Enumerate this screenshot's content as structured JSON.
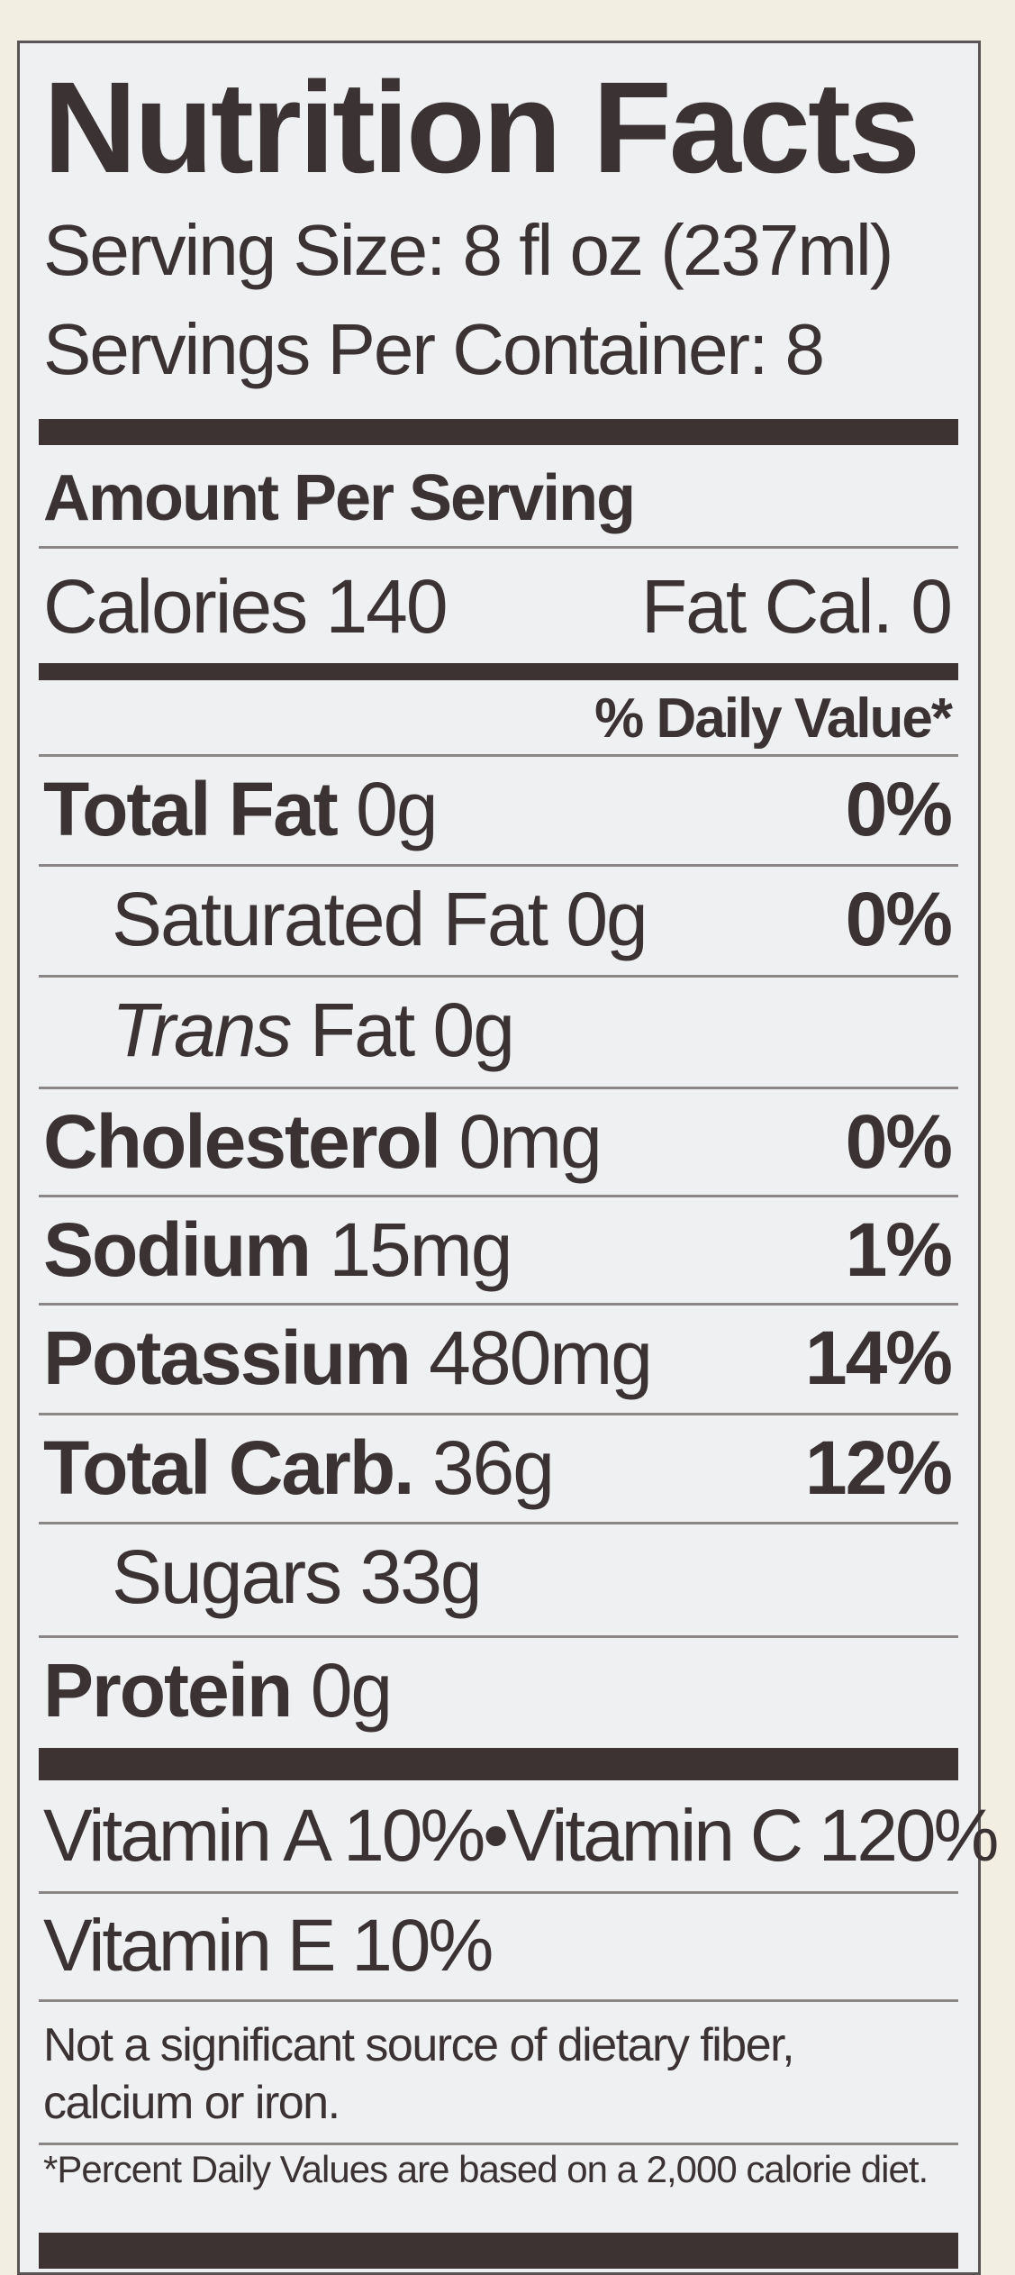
{
  "title": "Nutrition Facts",
  "serving_size": "Serving Size: 8 fl oz (237ml)",
  "servings_per_container": "Servings Per Container: 8",
  "amount_per_serving": "Amount Per Serving",
  "calories": {
    "label": "Calories",
    "value": "140"
  },
  "fat_calories": "Fat Cal. 0",
  "daily_value_header": "% Daily Value*",
  "nutrients": [
    {
      "name": "Total Fat",
      "amount": "0g",
      "dv": "0%"
    },
    {
      "name": "Saturated Fat",
      "amount": "0g",
      "dv": "0%"
    },
    {
      "name_italic": "Trans",
      "name": "Fat",
      "amount": "0g",
      "dv": ""
    },
    {
      "name": "Cholesterol",
      "amount": "0mg",
      "dv": "0%"
    },
    {
      "name": "Sodium",
      "amount": "15mg",
      "dv": "1%"
    },
    {
      "name": "Potassium",
      "amount": "480mg",
      "dv": "14%"
    },
    {
      "name": "Total Carb.",
      "amount": "36g",
      "dv": "12%"
    },
    {
      "name": "Sugars",
      "amount": "33g",
      "dv": ""
    },
    {
      "name": "Protein",
      "amount": "0g",
      "dv": ""
    }
  ],
  "vitamins": {
    "line1": "Vitamin A 10%•Vitamin C 120%",
    "line2": "Vitamin E 10%"
  },
  "not_significant": [
    "Not a significant source of dietary fiber,",
    "calcium or iron."
  ],
  "footnote": "*Percent Daily Values are based on a 2,000 calorie diet.",
  "colors": {
    "text": "#3b3333",
    "panel": "#eef0f2",
    "background": "#f2eee1"
  }
}
